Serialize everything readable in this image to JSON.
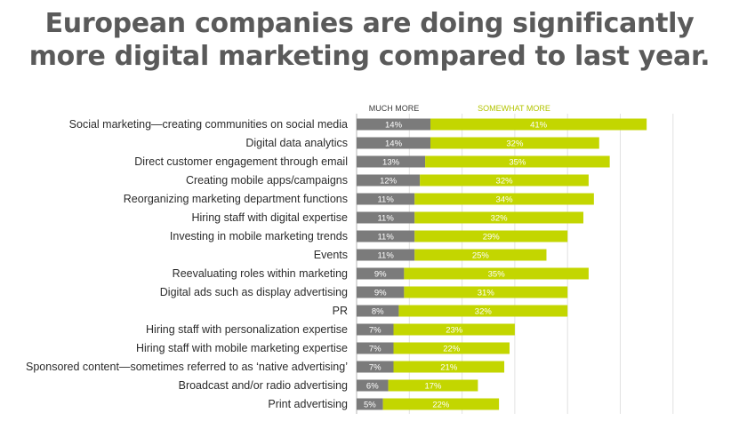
{
  "title_lines": [
    "European companies are doing significantly",
    "more digital marketing compared to last year."
  ],
  "chart_data": {
    "type": "bar",
    "orientation": "horizontal",
    "stacked": true,
    "categories": [
      "Social marketing—creating communities on social media",
      "Digital data analytics",
      "Direct customer engagement through email",
      "Creating mobile apps/campaigns",
      "Reorganizing marketing department functions",
      "Hiring staff with digital expertise",
      "Investing in mobile marketing trends",
      "Events",
      "Reevaluating roles within marketing",
      "Digital ads such as display advertising",
      "PR",
      "Hiring staff with personalization expertise",
      "Hiring staff with mobile marketing expertise",
      "Sponsored content—sometimes referred to as ‘native advertising’",
      "Broadcast and/or radio advertising",
      "Print advertising"
    ],
    "series": [
      {
        "name": "MUCH MORE",
        "color": "#7b7b7b",
        "values": [
          14,
          14,
          13,
          12,
          11,
          11,
          11,
          11,
          9,
          9,
          8,
          7,
          7,
          7,
          6,
          5
        ]
      },
      {
        "name": "SOMEWHAT MORE",
        "color": "#c3d600",
        "values": [
          41,
          32,
          35,
          32,
          34,
          32,
          29,
          25,
          35,
          31,
          32,
          23,
          22,
          21,
          17,
          22
        ]
      }
    ],
    "value_suffix": "%",
    "legend_position": "top",
    "grid": true,
    "xlim": [
      0,
      60
    ]
  }
}
